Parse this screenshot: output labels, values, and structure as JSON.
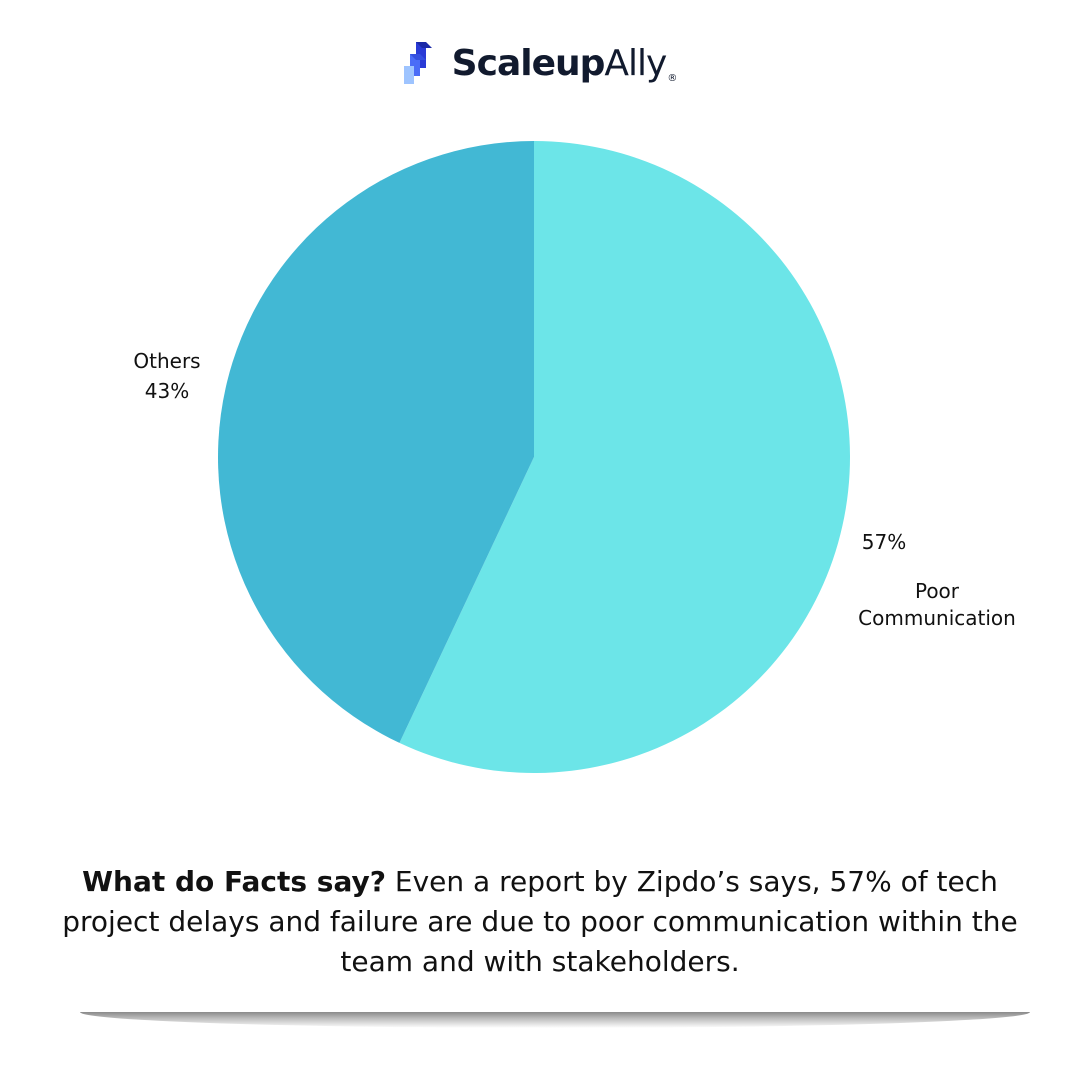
{
  "brand": {
    "name_bold": "Scaleup",
    "name_light": "Ally",
    "registered": "®",
    "colors": [
      "#2a3bd6",
      "#4a6cf7",
      "#9ec4ff"
    ]
  },
  "chart_data": {
    "type": "pie",
    "start_angle_deg": 0,
    "direction": "clockwise",
    "slices": [
      {
        "label": "Poor Communication",
        "value": 57,
        "value_label": "57%",
        "color": "#6ce5e8"
      },
      {
        "label": "Others",
        "value": 43,
        "value_label": "43%",
        "color": "#42b8d4"
      }
    ]
  },
  "caption": {
    "bold": "What do Facts say?",
    "text": " Even a report by Zipdo’s says, 57% of tech project delays and failure are due to poor communication within the team and with stakeholders."
  }
}
